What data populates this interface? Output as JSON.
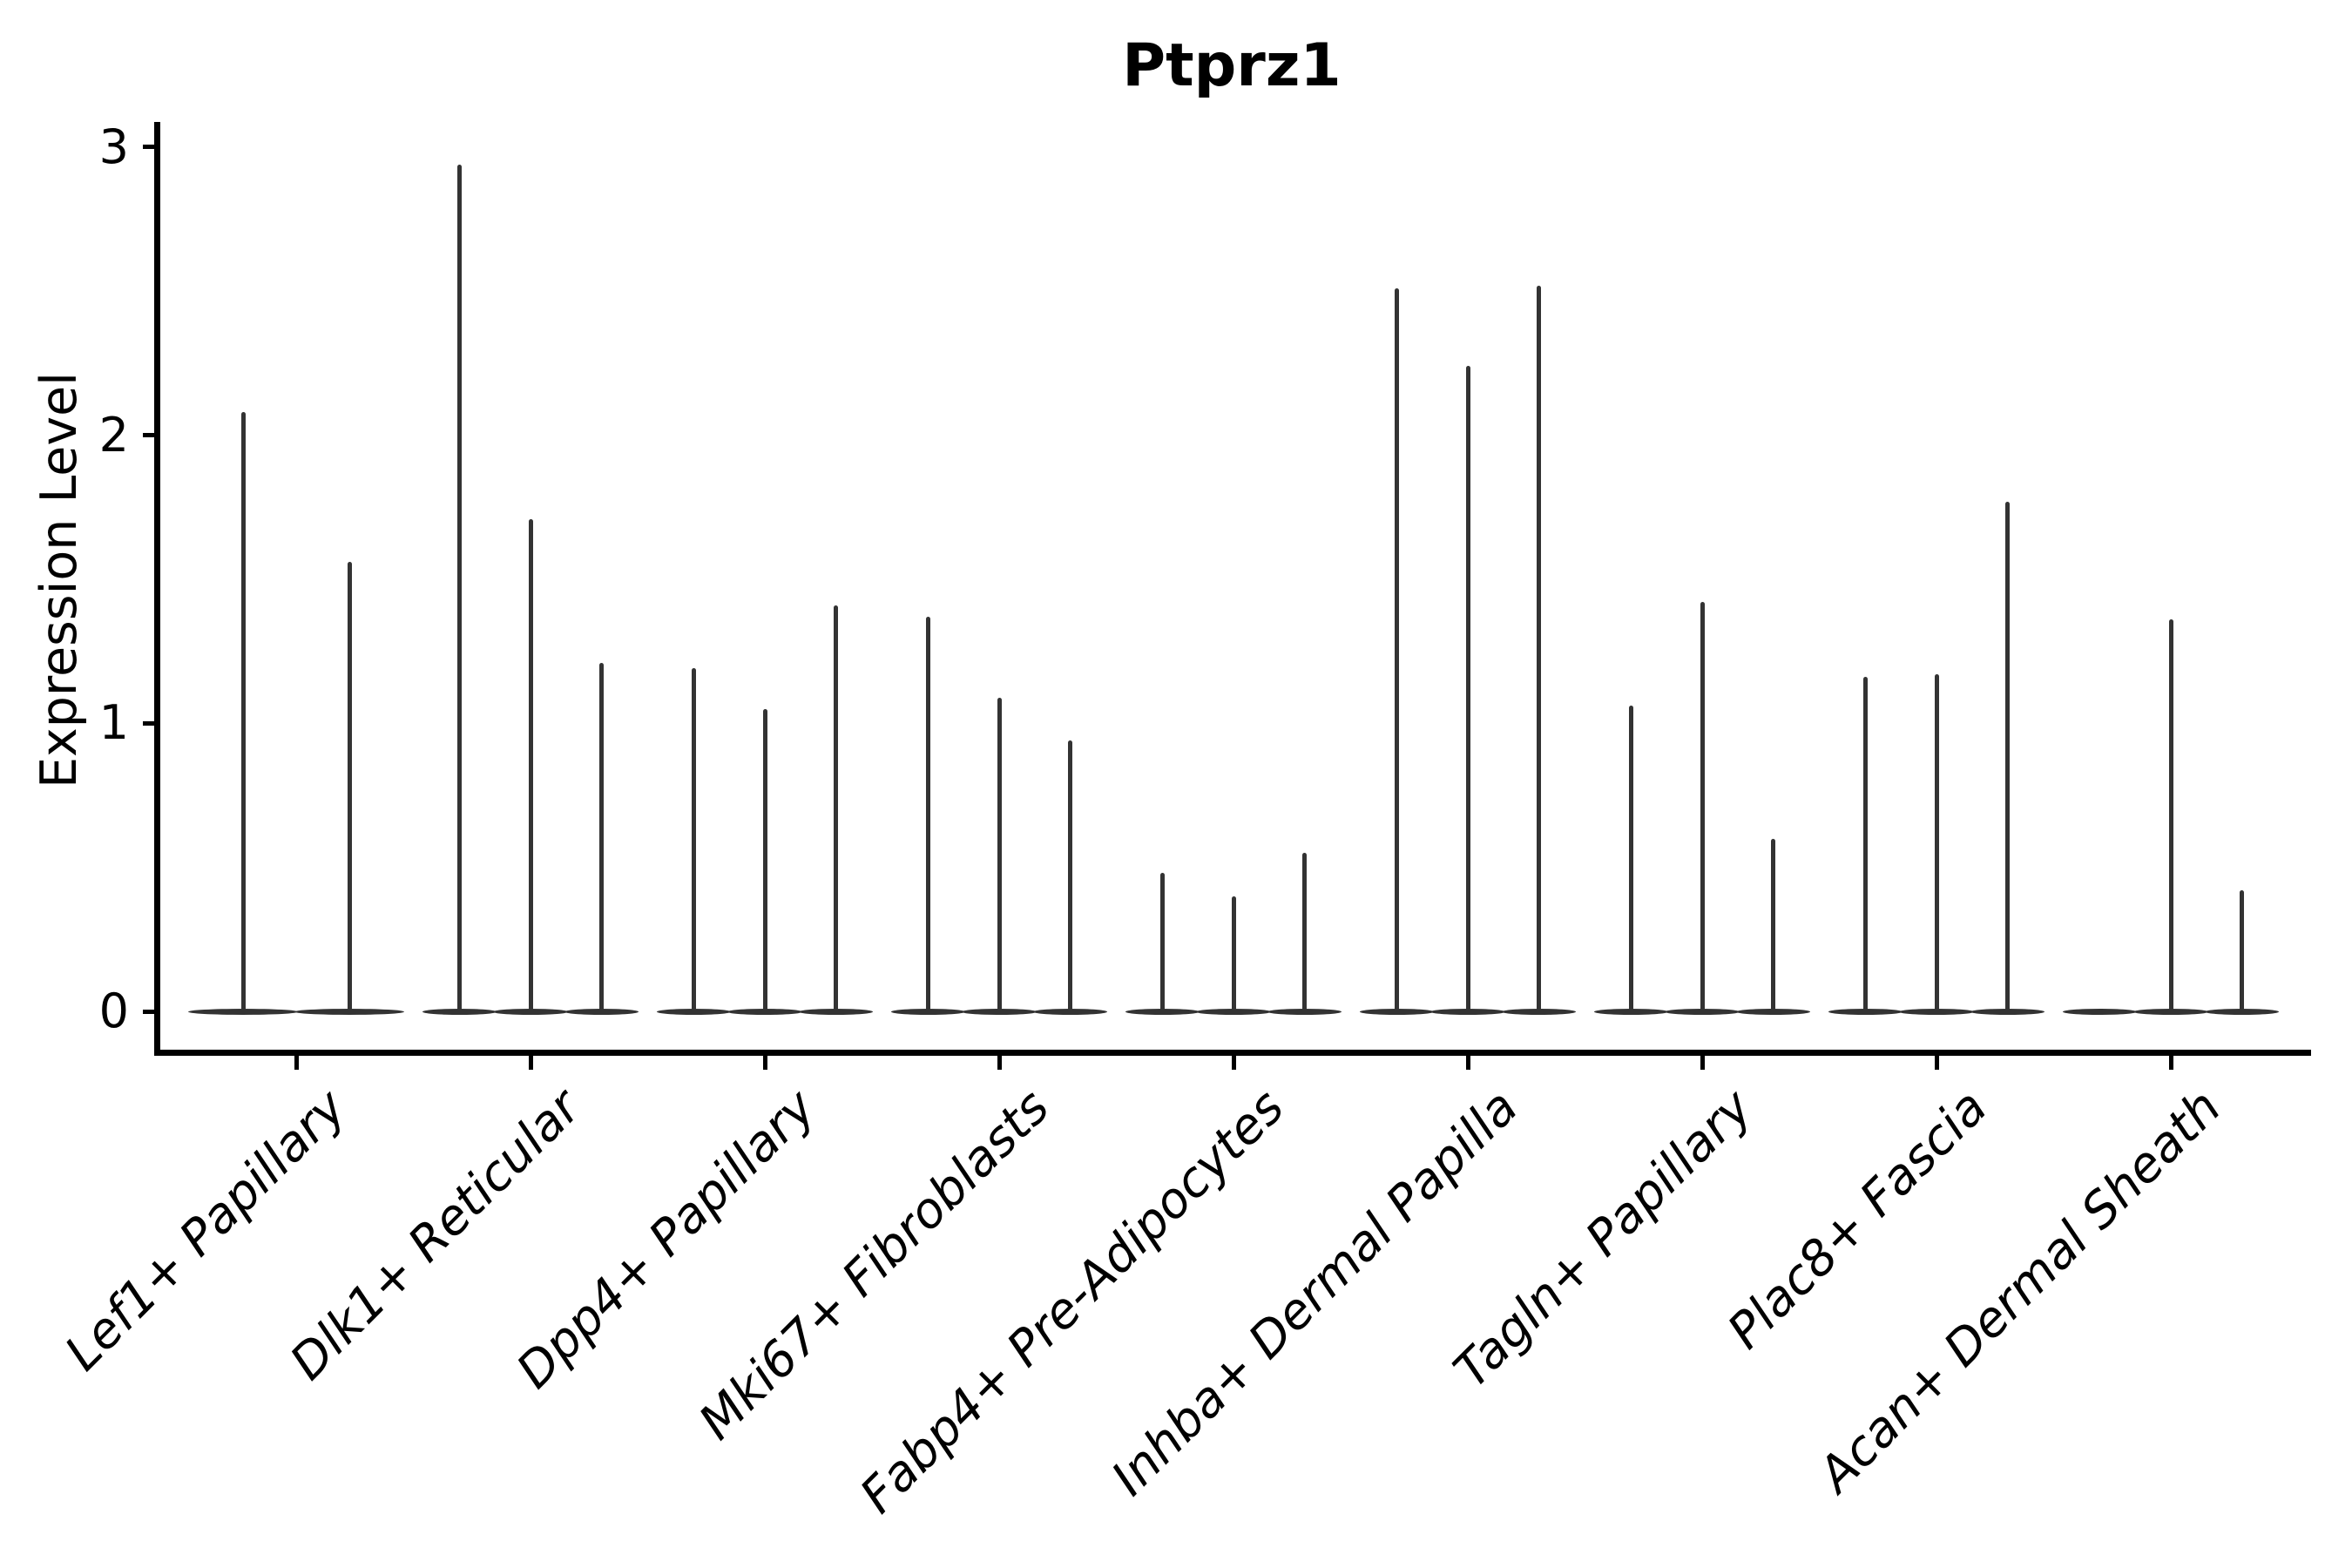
{
  "chart_data": {
    "type": "violin",
    "title": "Ptprz1",
    "ylabel": "Expression Level",
    "xlabel": "",
    "ylim": [
      0,
      3
    ],
    "yticks": [
      0,
      1,
      2,
      3
    ],
    "grid": false,
    "legend": false,
    "axis_color": "#000000",
    "violin_color": "#333333",
    "style_note": "single-cell gene expression violin plot; violins collapsed to a flat base at 0 with a thin spike up to the maximum expression value; 2-3 violins per category",
    "categories": [
      "Lef1+ Papillary",
      "Dlk1+ Reticular",
      "Dpp4+ Papillary",
      "Mki67+ Fibroblasts",
      "Fabp4+ Pre-Adipocytes",
      "Inhba+ Dermal Papilla",
      "Tagln+ Papillary",
      "Plac8+ Fascia",
      "Acan+ Dermal Sheath"
    ],
    "groups": [
      {
        "category": "Lef1+ Papillary",
        "violin_max_values": [
          2.08,
          1.56
        ]
      },
      {
        "category": "Dlk1+ Reticular",
        "violin_max_values": [
          2.94,
          1.71,
          1.21
        ]
      },
      {
        "category": "Dpp4+ Papillary",
        "violin_max_values": [
          1.19,
          1.05,
          1.41
        ]
      },
      {
        "category": "Mki67+ Fibroblasts",
        "violin_max_values": [
          1.37,
          1.09,
          0.94
        ]
      },
      {
        "category": "Fabp4+ Pre-Adipocytes",
        "violin_max_values": [
          0.48,
          0.4,
          0.55
        ]
      },
      {
        "category": "Inhba+ Dermal Papilla",
        "violin_max_values": [
          2.51,
          2.24,
          2.52
        ]
      },
      {
        "category": "Tagln+ Papillary",
        "violin_max_values": [
          1.06,
          1.42,
          0.6
        ]
      },
      {
        "category": "Plac8+ Fascia",
        "violin_max_values": [
          1.16,
          1.17,
          1.77
        ]
      },
      {
        "category": "Acan+ Dermal Sheath",
        "violin_max_values": [
          0,
          1.36,
          0.42
        ]
      }
    ]
  }
}
